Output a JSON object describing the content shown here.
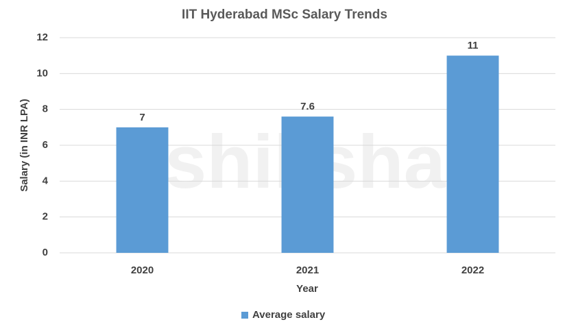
{
  "chart_data": {
    "type": "bar",
    "title": "IIT Hyderabad MSc Salary Trends",
    "x_label": "Year",
    "y_label": "Salary (in INR LPA)",
    "categories": [
      "2020",
      "2021",
      "2022"
    ],
    "series": [
      {
        "name": "Average salary",
        "color": "#5b9bd5",
        "values": [
          7,
          7.6,
          11
        ]
      }
    ],
    "ylim": [
      0,
      12
    ],
    "yticks": [
      0,
      2,
      4,
      6,
      8,
      10,
      12
    ],
    "grid": true,
    "legend": "bottom",
    "watermark": "shiksha"
  }
}
